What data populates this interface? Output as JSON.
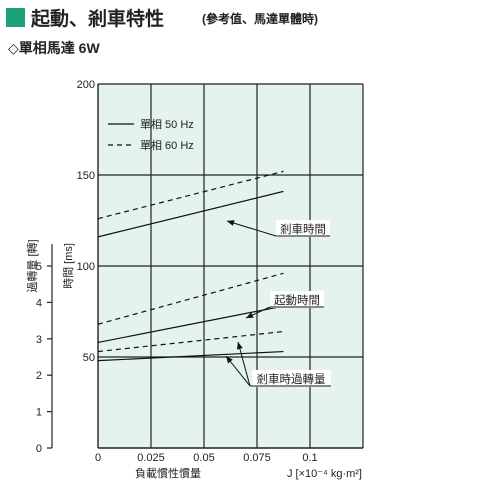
{
  "header": {
    "title": "起動、剎車特性",
    "title_note": "(參考值、馬達單體時)",
    "subtitle": "◇單相馬達  6W",
    "accent_color": "#1aa07a"
  },
  "chart_data": {
    "type": "line",
    "x": [
      0,
      0.0875
    ],
    "xticks": [
      "0",
      "0.025",
      "0.05",
      "0.075",
      "0.1"
    ],
    "xlim": [
      0,
      0.125
    ],
    "xlabel": "負載慣性慣量",
    "xunit": "J [×10⁻⁴ kg·m²]",
    "ylabel": "時間 [ms]",
    "ylim": [
      0,
      200
    ],
    "yticks": [
      "50",
      "100",
      "150",
      "200"
    ],
    "y2label": "過轉量 [轉]",
    "y2lim": [
      0,
      10
    ],
    "y2ticks": [
      "0",
      "1",
      "2",
      "3",
      "4",
      "5"
    ],
    "grid_color": "#222222",
    "plot_bg": "#e4f3ec",
    "legend": [
      {
        "label": "單相  50 Hz",
        "style": "solid"
      },
      {
        "label": "單相  60 Hz",
        "style": "dashed"
      }
    ],
    "series": [
      {
        "group": "剎車時間",
        "style": "solid",
        "y": [
          116,
          141
        ]
      },
      {
        "group": "剎車時間",
        "style": "dashed",
        "y": [
          126,
          152
        ]
      },
      {
        "group": "起動時間",
        "style": "solid",
        "y": [
          58,
          78
        ]
      },
      {
        "group": "起動時間",
        "style": "dashed",
        "y": [
          68,
          96
        ]
      },
      {
        "group": "剎車時過轉量",
        "style": "solid",
        "y": [
          48,
          53
        ]
      },
      {
        "group": "剎車時過轉量",
        "style": "dashed",
        "y": [
          53,
          64
        ]
      }
    ],
    "annotations": [
      "剎車時間",
      "起動時間",
      "剎車時過轉量"
    ]
  }
}
